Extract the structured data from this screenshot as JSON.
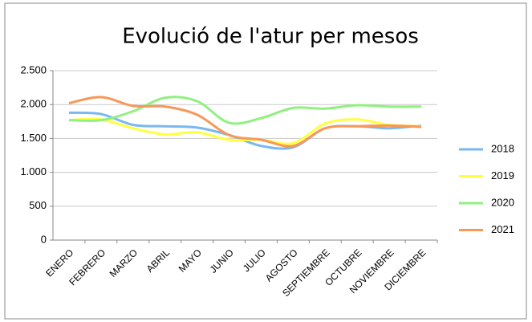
{
  "chart_data": {
    "type": "line",
    "title": "Evolució de l'atur per mesos",
    "categories": [
      "ENERO",
      "FEBRERO",
      "MARZO",
      "ABRIL",
      "MAYO",
      "JUNIO",
      "JULIO",
      "AGOSTO",
      "SEPTIEMBRE",
      "OCTUBRE",
      "NOVIEMBRE",
      "DICIEMBRE"
    ],
    "series": [
      {
        "name": "2018",
        "color": "#7ab8f0",
        "values": [
          1880,
          1860,
          1700,
          1680,
          1660,
          1550,
          1390,
          1370,
          1650,
          1680,
          1650,
          1690
        ]
      },
      {
        "name": "2019",
        "color": "#ffff40",
        "values": [
          1770,
          1780,
          1650,
          1560,
          1590,
          1480,
          1480,
          1430,
          1720,
          1780,
          1700,
          1680
        ]
      },
      {
        "name": "2020",
        "color": "#90f080",
        "values": [
          1770,
          1770,
          1900,
          2100,
          2050,
          1730,
          1800,
          1950,
          1940,
          1990,
          1970,
          1970
        ]
      },
      {
        "name": "2021",
        "color": "#f89858",
        "values": [
          2020,
          2110,
          1980,
          1970,
          1850,
          1550,
          1480,
          1390,
          1650,
          1680,
          1690,
          1670
        ]
      }
    ],
    "ylim": [
      0,
      2500
    ],
    "yticks": [
      0,
      500,
      {
        "value": 1000,
        "label": "1.000"
      },
      {
        "value": 1500,
        "label": "1.500"
      },
      {
        "value": 2000,
        "label": "2.000"
      },
      {
        "value": 2500,
        "label": "2.500"
      }
    ],
    "grid": true,
    "legend": "right"
  }
}
